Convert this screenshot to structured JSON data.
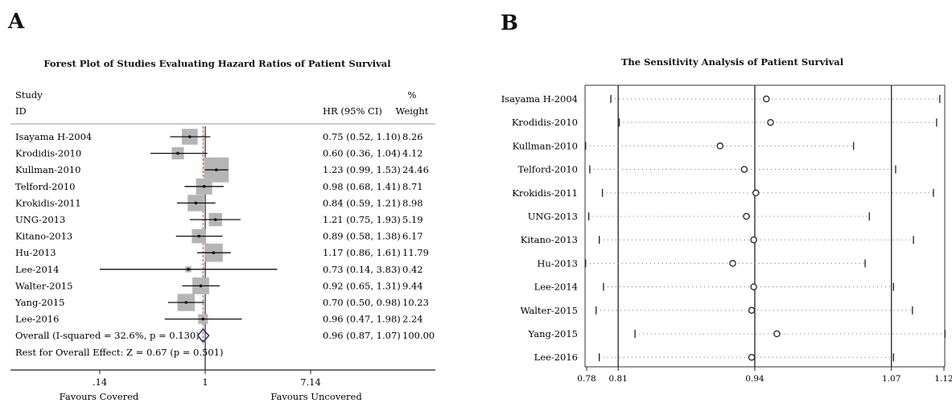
{
  "panels": {
    "a": {
      "letter": "A",
      "title": "Forest Plot of Studies Evaluating Hazard Ratios of Patient Survival"
    },
    "b": {
      "letter": "B",
      "title": "The Sensitivity Analysis of Patient Survival"
    }
  },
  "chart_data": [
    {
      "type": "forest",
      "header": {
        "study": "Study",
        "id": "ID",
        "hr": "HR (95% CI)",
        "weight_pct": "%",
        "weight": "Weight"
      },
      "x_scale": "log",
      "x_ticks": [
        {
          "value": 0.14,
          "label": ".14"
        },
        {
          "value": 1,
          "label": "1"
        },
        {
          "value": 7.14,
          "label": "7.14"
        }
      ],
      "xlim": [
        0.14,
        7.14
      ],
      "studies": [
        {
          "name": "Isayama H-2004",
          "hr": 0.75,
          "lo": 0.52,
          "hi": 1.1,
          "ci_text": "0.75 (0.52, 1.10)",
          "weight": "8.26",
          "w": 8.26
        },
        {
          "name": "Krodidis-2010",
          "hr": 0.6,
          "lo": 0.36,
          "hi": 1.04,
          "ci_text": "0.60 (0.36, 1.04)",
          "weight": "4.12",
          "w": 4.12
        },
        {
          "name": "Kullman-2010",
          "hr": 1.23,
          "lo": 0.99,
          "hi": 1.53,
          "ci_text": "1.23 (0.99, 1.53)",
          "weight": "24.46",
          "w": 24.46
        },
        {
          "name": "Telford-2010",
          "hr": 0.98,
          "lo": 0.68,
          "hi": 1.41,
          "ci_text": "0.98 (0.68, 1.41)",
          "weight": "8.71",
          "w": 8.71
        },
        {
          "name": "Krokidis-2011",
          "hr": 0.84,
          "lo": 0.59,
          "hi": 1.21,
          "ci_text": "0.84 (0.59, 1.21)",
          "weight": "8.98",
          "w": 8.98
        },
        {
          "name": "UNG-2013",
          "hr": 1.21,
          "lo": 0.75,
          "hi": 1.93,
          "ci_text": "1.21 (0.75, 1.93)",
          "weight": "5.19",
          "w": 5.19
        },
        {
          "name": "Kitano-2013",
          "hr": 0.89,
          "lo": 0.58,
          "hi": 1.38,
          "ci_text": "0.89 (0.58, 1.38)",
          "weight": "6.17",
          "w": 6.17
        },
        {
          "name": "Hu-2013",
          "hr": 1.17,
          "lo": 0.86,
          "hi": 1.61,
          "ci_text": "1.17 (0.86, 1.61)",
          "weight": "11.79",
          "w": 11.79
        },
        {
          "name": "Lee-2014",
          "hr": 0.73,
          "lo": 0.14,
          "hi": 3.83,
          "ci_text": "0.73 (0.14, 3.83)",
          "weight": "0.42",
          "w": 0.42
        },
        {
          "name": "Walter-2015",
          "hr": 0.92,
          "lo": 0.65,
          "hi": 1.31,
          "ci_text": "0.92 (0.65, 1.31)",
          "weight": "9.44",
          "w": 9.44
        },
        {
          "name": "Yang-2015",
          "hr": 0.7,
          "lo": 0.5,
          "hi": 0.98,
          "ci_text": "0.70 (0.50, 0.98)",
          "weight": "10.23",
          "w": 10.23
        },
        {
          "name": "Lee-2016",
          "hr": 0.96,
          "lo": 0.47,
          "hi": 1.98,
          "ci_text": "0.96 (0.47, 1.98)",
          "weight": "2.24",
          "w": 2.24
        }
      ],
      "overall": {
        "label": "Overall (I-squared = 32.6%, p = 0.130)",
        "hr": 0.96,
        "lo": 0.87,
        "hi": 1.07,
        "ci_text": "0.96 (0.87, 1.07)",
        "weight": "100.00"
      },
      "test_label": "Rest for Overall Effect: Z = 0.67 (p = 0.501)",
      "favours_left": "Favours Covered",
      "favours_right": "Favours Uncovered"
    },
    {
      "type": "sensitivity",
      "x_ticks": [
        {
          "value": 0.78,
          "label": "0.78"
        },
        {
          "value": 0.81,
          "label": "0.81"
        },
        {
          "value": 0.94,
          "label": "0.94"
        },
        {
          "value": 1.07,
          "label": "1.07"
        },
        {
          "value": 1.12,
          "label": "1.12"
        }
      ],
      "xlim": [
        0.78,
        1.12
      ],
      "ref_lines": [
        0.81,
        0.94,
        1.07
      ],
      "rows": [
        {
          "name": "Isayama H-2004",
          "est": 0.951,
          "lo": 0.803,
          "hi": 1.116
        },
        {
          "name": "Krodidis-2010",
          "est": 0.955,
          "lo": 0.811,
          "hi": 1.113
        },
        {
          "name": "Kullman-2010",
          "est": 0.907,
          "lo": 0.779,
          "hi": 1.034
        },
        {
          "name": "Telford-2010",
          "est": 0.93,
          "lo": 0.783,
          "hi": 1.074
        },
        {
          "name": "Krokidis-2011",
          "est": 0.941,
          "lo": 0.795,
          "hi": 1.11
        },
        {
          "name": "UNG-2013",
          "est": 0.932,
          "lo": 0.782,
          "hi": 1.049
        },
        {
          "name": "Kitano-2013",
          "est": 0.939,
          "lo": 0.792,
          "hi": 1.091
        },
        {
          "name": "Hu-2013",
          "est": 0.919,
          "lo": 0.779,
          "hi": 1.045
        },
        {
          "name": "Lee-2014",
          "est": 0.939,
          "lo": 0.796,
          "hi": 1.072
        },
        {
          "name": "Walter-2015",
          "est": 0.937,
          "lo": 0.789,
          "hi": 1.09
        },
        {
          "name": "Yang-2015",
          "est": 0.961,
          "lo": 0.826,
          "hi": 1.121
        },
        {
          "name": "Lee-2016",
          "est": 0.937,
          "lo": 0.792,
          "hi": 1.072
        }
      ]
    }
  ]
}
